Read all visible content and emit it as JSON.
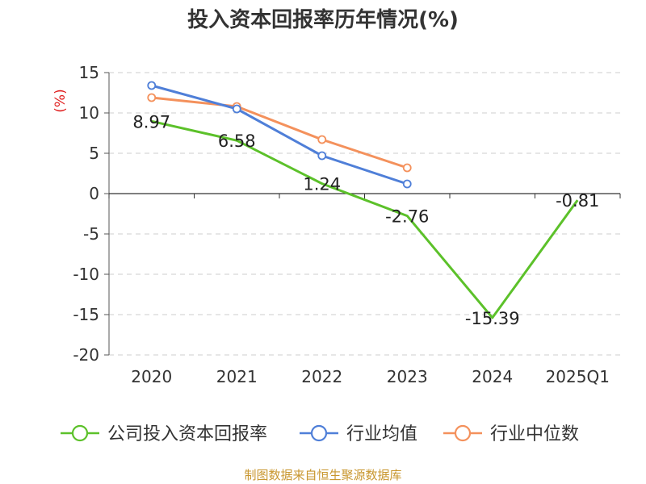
{
  "chart_data": {
    "type": "line",
    "title": "投入资本回报率历年情况(%)",
    "ylabel": "(%)",
    "xlabel": "",
    "categories": [
      "2020",
      "2021",
      "2022",
      "2023",
      "2024",
      "2025Q1"
    ],
    "ylim": [
      -20,
      15
    ],
    "yticks": [
      15,
      10,
      5,
      0,
      -5,
      -10,
      -15,
      -20
    ],
    "grid": true,
    "legend_position": "bottom",
    "series": [
      {
        "name": "公司投入资本回报率",
        "color": "#5cc12a",
        "values": [
          8.97,
          6.58,
          1.24,
          -2.76,
          -15.39,
          -0.81
        ],
        "labels": [
          "8.97",
          "6.58",
          "1.24",
          "-2.76",
          "-15.39",
          "-0.81"
        ]
      },
      {
        "name": "行业均值",
        "color": "#4f7fd8",
        "values": [
          13.4,
          10.5,
          4.7,
          1.2,
          null,
          null
        ]
      },
      {
        "name": "行业中位数",
        "color": "#f4915c",
        "values": [
          11.9,
          10.8,
          6.7,
          3.2,
          null,
          null
        ]
      }
    ],
    "source": "制图数据来自恒生聚源数据库"
  }
}
